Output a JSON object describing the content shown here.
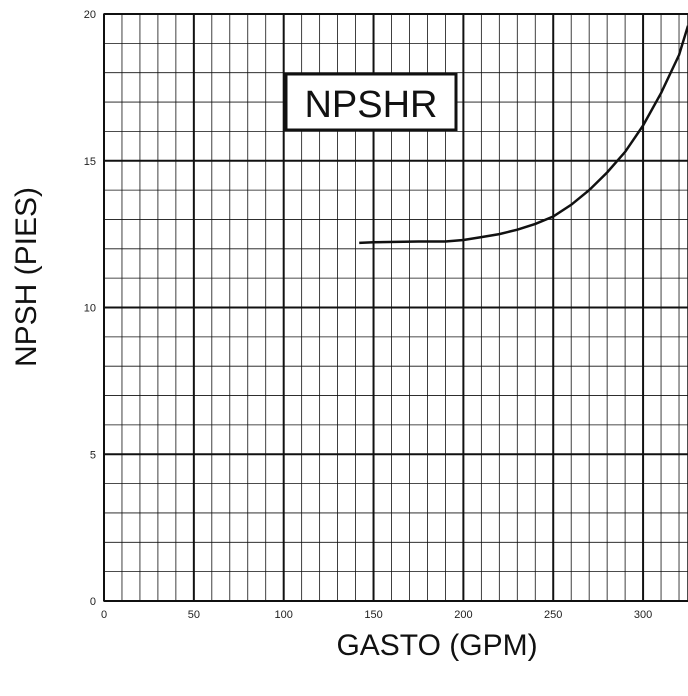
{
  "chart_data": {
    "type": "line",
    "title": "",
    "annotation": "NPSHR",
    "xlabel": "GASTO (GPM)",
    "ylabel": "NPSH (PIES)",
    "xlim": [
      0,
      325
    ],
    "ylim": [
      0,
      20
    ],
    "x_ticks": [
      "0",
      "50",
      "100",
      "150",
      "200",
      "250",
      "300"
    ],
    "y_ticks": [
      "0",
      "5",
      "10",
      "15",
      "20"
    ],
    "grid": true,
    "series": [
      {
        "x": [
          142,
          150,
          175,
          190,
          200,
          210,
          220,
          230,
          240,
          250,
          260,
          270,
          280,
          290,
          300,
          310,
          320,
          325
        ],
        "values": [
          12.2,
          12.22,
          12.25,
          12.25,
          12.3,
          12.4,
          12.5,
          12.65,
          12.85,
          13.1,
          13.5,
          14.0,
          14.6,
          15.3,
          16.2,
          17.3,
          18.6,
          19.6
        ]
      }
    ]
  }
}
